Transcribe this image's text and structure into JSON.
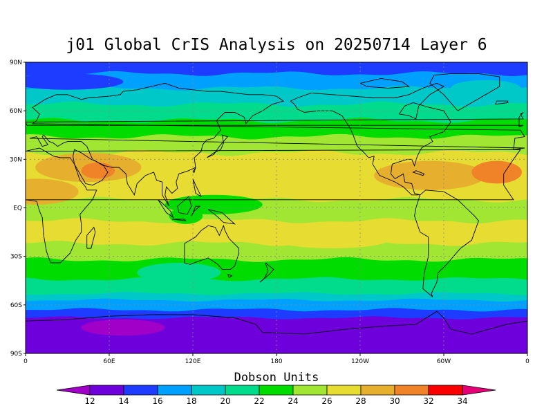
{
  "title": "j01 Global CrIS Analysis on 20250714 Layer 6",
  "colorbar": {
    "title": "Dobson Units",
    "levels": [
      12,
      14,
      16,
      18,
      20,
      22,
      24,
      26,
      28,
      30,
      32,
      34
    ],
    "colors": [
      "#a000c8",
      "#6e00dc",
      "#1e3cff",
      "#00a0ff",
      "#00c8c8",
      "#00dc8c",
      "#00dc00",
      "#a0e632",
      "#e6dc32",
      "#e6af2d",
      "#f08228",
      "#fa0000",
      "#e60078"
    ],
    "labels": [
      "12",
      "14",
      "16",
      "18",
      "20",
      "22",
      "24",
      "26",
      "28",
      "30",
      "32",
      "34"
    ]
  },
  "axes": {
    "x_ticks": [
      {
        "lon": 0,
        "label": "0"
      },
      {
        "lon": 60,
        "label": "60E"
      },
      {
        "lon": 120,
        "label": "120E"
      },
      {
        "lon": 180,
        "label": "180"
      },
      {
        "lon": 240,
        "label": "120W"
      },
      {
        "lon": 300,
        "label": "60W"
      },
      {
        "lon": 360,
        "label": "0"
      }
    ],
    "y_ticks": [
      {
        "lat": 90,
        "label": "90N"
      },
      {
        "lat": 60,
        "label": "60N"
      },
      {
        "lat": 30,
        "label": "30N"
      },
      {
        "lat": 0,
        "label": "EQ"
      },
      {
        "lat": -30,
        "label": "30S"
      },
      {
        "lat": -60,
        "label": "60S"
      },
      {
        "lat": -90,
        "label": "90S"
      }
    ],
    "lon_range": [
      0,
      360
    ],
    "lat_range": [
      -90,
      90
    ],
    "grid": "dotted"
  },
  "map": {
    "projection": "cylindrical equidistant",
    "field": "total ozone (Dobson Units)",
    "bands": [
      {
        "lat_top": 90,
        "lat_bot": 83,
        "bin": 2,
        "amp": 0.6
      },
      {
        "lat_top": 83,
        "lat_bot": 74,
        "bin": 3,
        "amp": 0.8
      },
      {
        "lat_top": 74,
        "lat_bot": 64,
        "bin": 4,
        "amp": 0.8
      },
      {
        "lat_top": 64,
        "lat_bot": 54,
        "bin": 5,
        "amp": 0.9
      },
      {
        "lat_top": 54,
        "lat_bot": 44,
        "bin": 6,
        "amp": 0.9
      },
      {
        "lat_top": 44,
        "lat_bot": 34,
        "bin": 7,
        "amp": 0.9
      },
      {
        "lat_top": 34,
        "lat_bot": 22,
        "bin": 8,
        "amp": 1.0
      },
      {
        "lat_top": 22,
        "lat_bot": 5,
        "bin": 8,
        "amp": 1.0
      },
      {
        "lat_top": 5,
        "lat_bot": -8,
        "bin": 7,
        "amp": 0.9
      },
      {
        "lat_top": -8,
        "lat_bot": -22,
        "bin": 8,
        "amp": 0.9
      },
      {
        "lat_top": -22,
        "lat_bot": -32,
        "bin": 7,
        "amp": 0.9
      },
      {
        "lat_top": -32,
        "lat_bot": -44,
        "bin": 6,
        "amp": 0.8
      },
      {
        "lat_top": -44,
        "lat_bot": -53,
        "bin": 5,
        "amp": 0.7
      },
      {
        "lat_top": -53,
        "lat_bot": -57,
        "bin": 4,
        "amp": 0.5
      },
      {
        "lat_top": -57,
        "lat_bot": -63,
        "bin": 3,
        "amp": 0.5
      },
      {
        "lat_top": -63,
        "lat_bot": -68,
        "bin": 2,
        "amp": 0.6
      },
      {
        "lat_top": -68,
        "lat_bot": -90,
        "bin": 1,
        "amp": 0.5
      }
    ],
    "blobs": [
      {
        "lon": 45,
        "lat": 25,
        "rlon": 38,
        "rlat": 9,
        "bin": 9
      },
      {
        "lon": 52,
        "lat": 23,
        "rlon": 12,
        "rlat": 5,
        "bin": 10
      },
      {
        "lon": 290,
        "lat": 20,
        "rlon": 40,
        "rlat": 9,
        "bin": 9
      },
      {
        "lon": 338,
        "lat": 22,
        "rlon": 18,
        "rlat": 7,
        "bin": 10
      },
      {
        "lon": 8,
        "lat": 10,
        "rlon": 30,
        "rlat": 8,
        "bin": 9
      },
      {
        "lon": 135,
        "lat": 2,
        "rlon": 35,
        "rlat": 6,
        "bin": 6
      },
      {
        "lon": 115,
        "lat": -5,
        "rlon": 12,
        "rlat": 5,
        "bin": 6
      },
      {
        "lon": 220,
        "lat": -20,
        "rlon": 40,
        "rlat": 5,
        "bin": 8
      },
      {
        "lon": 70,
        "lat": -74,
        "rlon": 30,
        "rlat": 5,
        "bin": 0
      },
      {
        "lon": 110,
        "lat": -40,
        "rlon": 30,
        "rlat": 6,
        "bin": 5
      },
      {
        "lon": 30,
        "lat": 78,
        "rlon": 40,
        "rlat": 5,
        "bin": 2
      },
      {
        "lon": 330,
        "lat": 74,
        "rlon": 25,
        "rlat": 5,
        "bin": 4
      }
    ]
  }
}
